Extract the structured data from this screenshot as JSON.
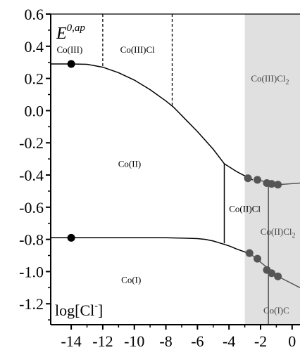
{
  "chart_data": {
    "type": "predominance-diagram",
    "title": "",
    "xlabel": "log[Cl⁻]",
    "ylabel": "E^0,ap",
    "xlim": [
      -15.3,
      0.5
    ],
    "ylim": [
      -1.33,
      0.6
    ],
    "x_ticks": [
      -14,
      -12,
      -10,
      -8,
      -6,
      -4,
      -2,
      0
    ],
    "y_ticks": [
      0.6,
      0.4,
      0.2,
      0.0,
      -0.2,
      -0.4,
      -0.6,
      -0.8,
      -1.0,
      -1.2
    ],
    "y_tick_labels": [
      "0.6",
      "0.4",
      "0.2",
      "0.0",
      "-0.2",
      "-0.4",
      "-0.6",
      "-0.8",
      "-1.0",
      "-1.2"
    ],
    "shaded_region_x": [
      -3.0,
      0.5
    ],
    "y_label_main": "E",
    "y_label_sup": "0,ap",
    "x_label_text": "log[Cl",
    "x_label_sup": "-",
    "x_label_close": "]",
    "regions": [
      {
        "label": "Co(III)",
        "x": -14.1,
        "y": 0.36
      },
      {
        "label": "Co(III)Cl",
        "x": -9.8,
        "y": 0.36
      },
      {
        "label": "Co(III)Cl",
        "sub": "2",
        "x": -1.4,
        "y": 0.18
      },
      {
        "label": "Co(II)",
        "x": -10.3,
        "y": -0.35
      },
      {
        "label": "Co(II)Cl",
        "x": -3.0,
        "y": -0.63
      },
      {
        "label": "Co(II)Cl",
        "sub": "2",
        "x": -0.9,
        "y": -0.77
      },
      {
        "label": "Co(I)",
        "x": -10.2,
        "y": -1.07
      },
      {
        "label": "Co(I)C",
        "x": -1.0,
        "y": -1.26
      }
    ],
    "upper_boundary": [
      [
        -15.3,
        0.29
      ],
      [
        -14.0,
        0.29
      ],
      [
        -13.0,
        0.288
      ],
      [
        -12.0,
        0.27
      ],
      [
        -11.0,
        0.236
      ],
      [
        -10.0,
        0.19
      ],
      [
        -9.0,
        0.13
      ],
      [
        -8.0,
        0.06
      ],
      [
        -7.5,
        0.02
      ],
      [
        -7.0,
        -0.03
      ],
      [
        -6.0,
        -0.13
      ],
      [
        -5.0,
        -0.24
      ],
      [
        -4.3,
        -0.33
      ],
      [
        -3.5,
        -0.38
      ],
      [
        -3.0,
        -0.405
      ],
      [
        -2.7,
        -0.42
      ],
      [
        -2.5,
        -0.43
      ]
    ],
    "upper_boundary_dots": [
      [
        -2.8,
        -0.42
      ],
      [
        -2.2,
        -0.43
      ],
      [
        -1.6,
        -0.45
      ],
      [
        -1.3,
        -0.455
      ],
      [
        -0.9,
        -0.46
      ]
    ],
    "upper_boundary_extension": [
      [
        -2.2,
        -0.43
      ],
      [
        -0.9,
        -0.46
      ],
      [
        0.5,
        -0.45
      ]
    ],
    "lower_boundary": [
      [
        -15.3,
        -0.79
      ],
      [
        -8.0,
        -0.79
      ],
      [
        -7.0,
        -0.792
      ],
      [
        -6.0,
        -0.795
      ],
      [
        -5.5,
        -0.8
      ],
      [
        -5.0,
        -0.81
      ],
      [
        -4.5,
        -0.825
      ],
      [
        -4.0,
        -0.84
      ],
      [
        -3.5,
        -0.86
      ],
      [
        -2.8,
        -0.885
      ]
    ],
    "lower_boundary_dots": [
      [
        -2.7,
        -0.885
      ],
      [
        -2.2,
        -0.92
      ],
      [
        -1.6,
        -0.99
      ],
      [
        -1.3,
        -1.01
      ],
      [
        -0.9,
        -1.03
      ]
    ],
    "lower_boundary_extension": [
      [
        -2.7,
        -0.885
      ],
      [
        -0.9,
        -1.03
      ],
      [
        0.5,
        -1.1
      ]
    ],
    "marker_points": [
      [
        -14.0,
        0.29
      ],
      [
        -14.0,
        -0.79
      ]
    ],
    "dashed_lines": [
      [
        [
          -12.0,
          0.6
        ],
        [
          -12.0,
          0.27
        ]
      ],
      [
        [
          -7.6,
          0.6
        ],
        [
          -7.6,
          0.02
        ]
      ]
    ],
    "vertical_lines": [
      [
        [
          -4.3,
          -0.33
        ],
        [
          -4.3,
          -0.825
        ]
      ],
      [
        [
          -1.5,
          -0.45
        ],
        [
          -1.5,
          -1.0
        ]
      ],
      [
        [
          -1.5,
          -1.02
        ],
        [
          -1.5,
          -1.33
        ]
      ]
    ],
    "colors": {
      "black": "#000000",
      "grey_line": "#555555",
      "dot_grey": "#555555",
      "shade": "#e0e0e0"
    }
  }
}
